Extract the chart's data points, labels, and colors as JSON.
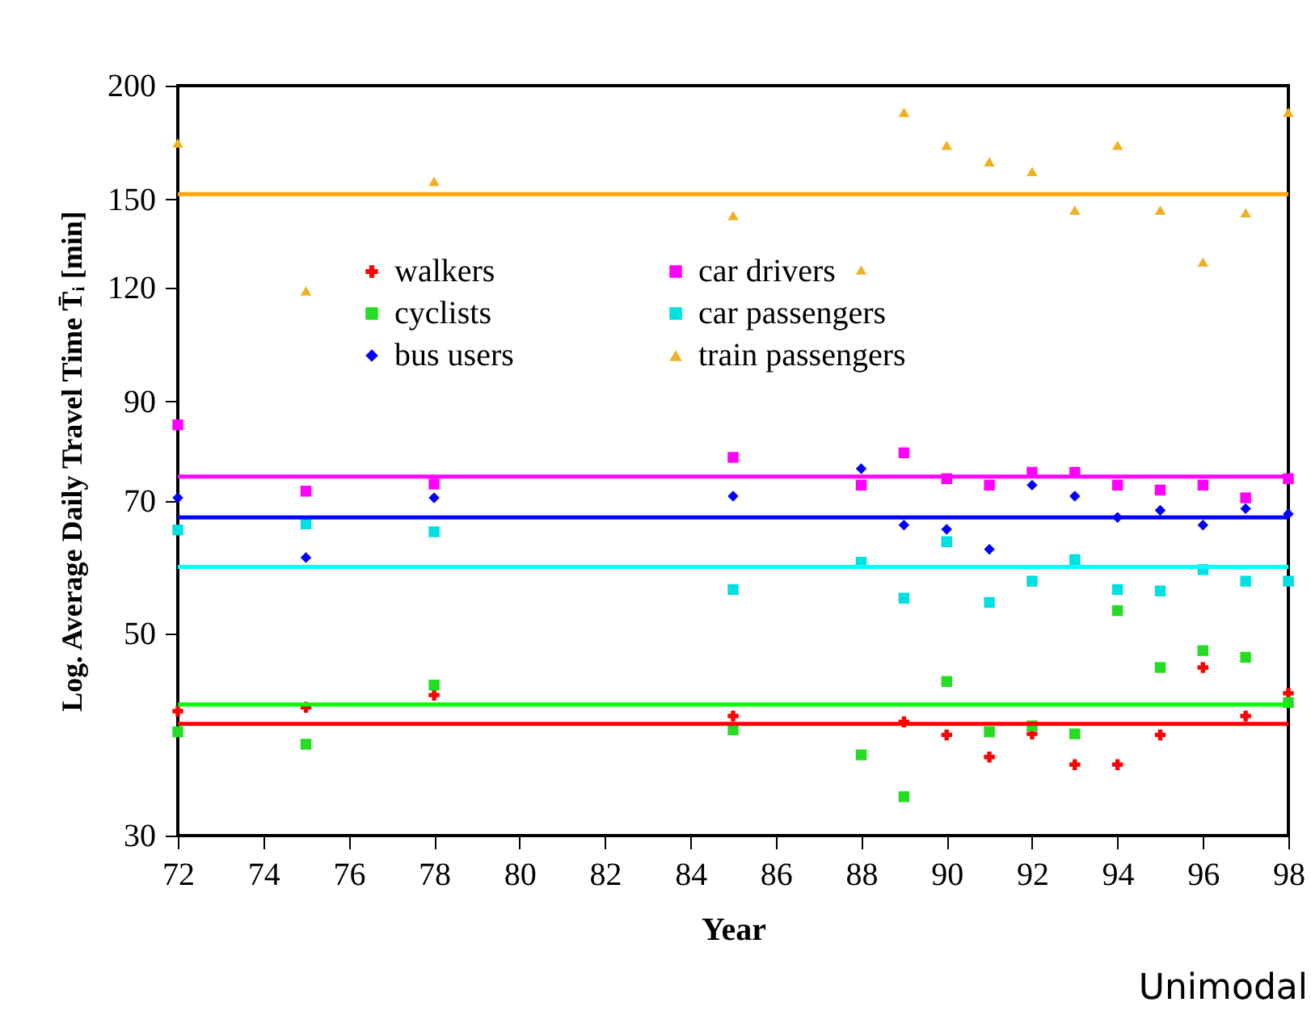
{
  "chart_data": {
    "type": "scatter",
    "xlabel": "Year",
    "ylabel": "Log. Average Daily Travel Time T̄ᵢ [min]",
    "log": "y",
    "grid": false,
    "legend": "top",
    "xlim": [
      72,
      98
    ],
    "xticks": [
      72,
      74,
      76,
      78,
      80,
      82,
      84,
      86,
      88,
      90,
      92,
      94,
      96,
      98
    ],
    "ylim": [
      30,
      200
    ],
    "yticks": [
      30,
      50,
      70,
      90,
      120,
      150,
      200
    ],
    "x": [
      72,
      75,
      78,
      85,
      88,
      89,
      90,
      91,
      92,
      93,
      94,
      95,
      96,
      97,
      98
    ],
    "series": [
      {
        "name": "walkers",
        "color": "#ff0000",
        "marker": "cross",
        "values": [
          41.1,
          41.5,
          42.8,
          40.6,
          null,
          40,
          38.7,
          36.6,
          38.8,
          35.9,
          35.9,
          38.7,
          45.9,
          40.6,
          43
        ]
      },
      {
        "name": "cyclists",
        "color": "#22dd22",
        "marker": "square",
        "values": [
          39,
          37.8,
          43.9,
          39.2,
          36.8,
          33.1,
          44.3,
          39,
          39.6,
          38.8,
          53,
          45.9,
          47.9,
          47.1,
          42
        ]
      },
      {
        "name": "bus users",
        "color": "#0000ff",
        "marker": "diamond",
        "values": [
          70.5,
          60.6,
          70.5,
          70.8,
          75.9,
          65.8,
          65.1,
          61.9,
          72.8,
          70.8,
          67.1,
          68.3,
          65.8,
          68.6,
          67.7
        ]
      },
      {
        "name": "car drivers",
        "color": "#ff00ff",
        "marker": "square",
        "values": [
          84.8,
          71.7,
          73,
          78.1,
          72.8,
          79,
          74,
          72.8,
          75.2,
          75.2,
          72.8,
          71.9,
          72.8,
          70.5,
          74
        ]
      },
      {
        "name": "car passengers",
        "color": "#00e0e0",
        "marker": "square",
        "values": [
          65,
          66,
          64.7,
          55.9,
          59.9,
          54.7,
          63.1,
          54.1,
          57.1,
          60.3,
          55.9,
          55.7,
          58.8,
          57.1,
          57.1
        ]
      },
      {
        "name": "train passengers",
        "color": "#f0b020",
        "marker": "triangle",
        "values": [
          173,
          119,
          157,
          144,
          125.5,
          187,
          172,
          165,
          161,
          146,
          172,
          146,
          128,
          145,
          187
        ]
      }
    ],
    "ref_lines": [
      {
        "axis": "y",
        "value": 152,
        "color": "#ffa500"
      },
      {
        "axis": "y",
        "value": 74.4,
        "color": "#ff00ff"
      },
      {
        "axis": "y",
        "value": 67.1,
        "color": "#0000ff"
      },
      {
        "axis": "y",
        "value": 59.2,
        "color": "#00ffff"
      },
      {
        "axis": "y",
        "value": 41.8,
        "color": "#00ff00"
      },
      {
        "axis": "y",
        "value": 39.8,
        "color": "#ff0000"
      }
    ],
    "annotations": [
      "Unimodal"
    ]
  }
}
